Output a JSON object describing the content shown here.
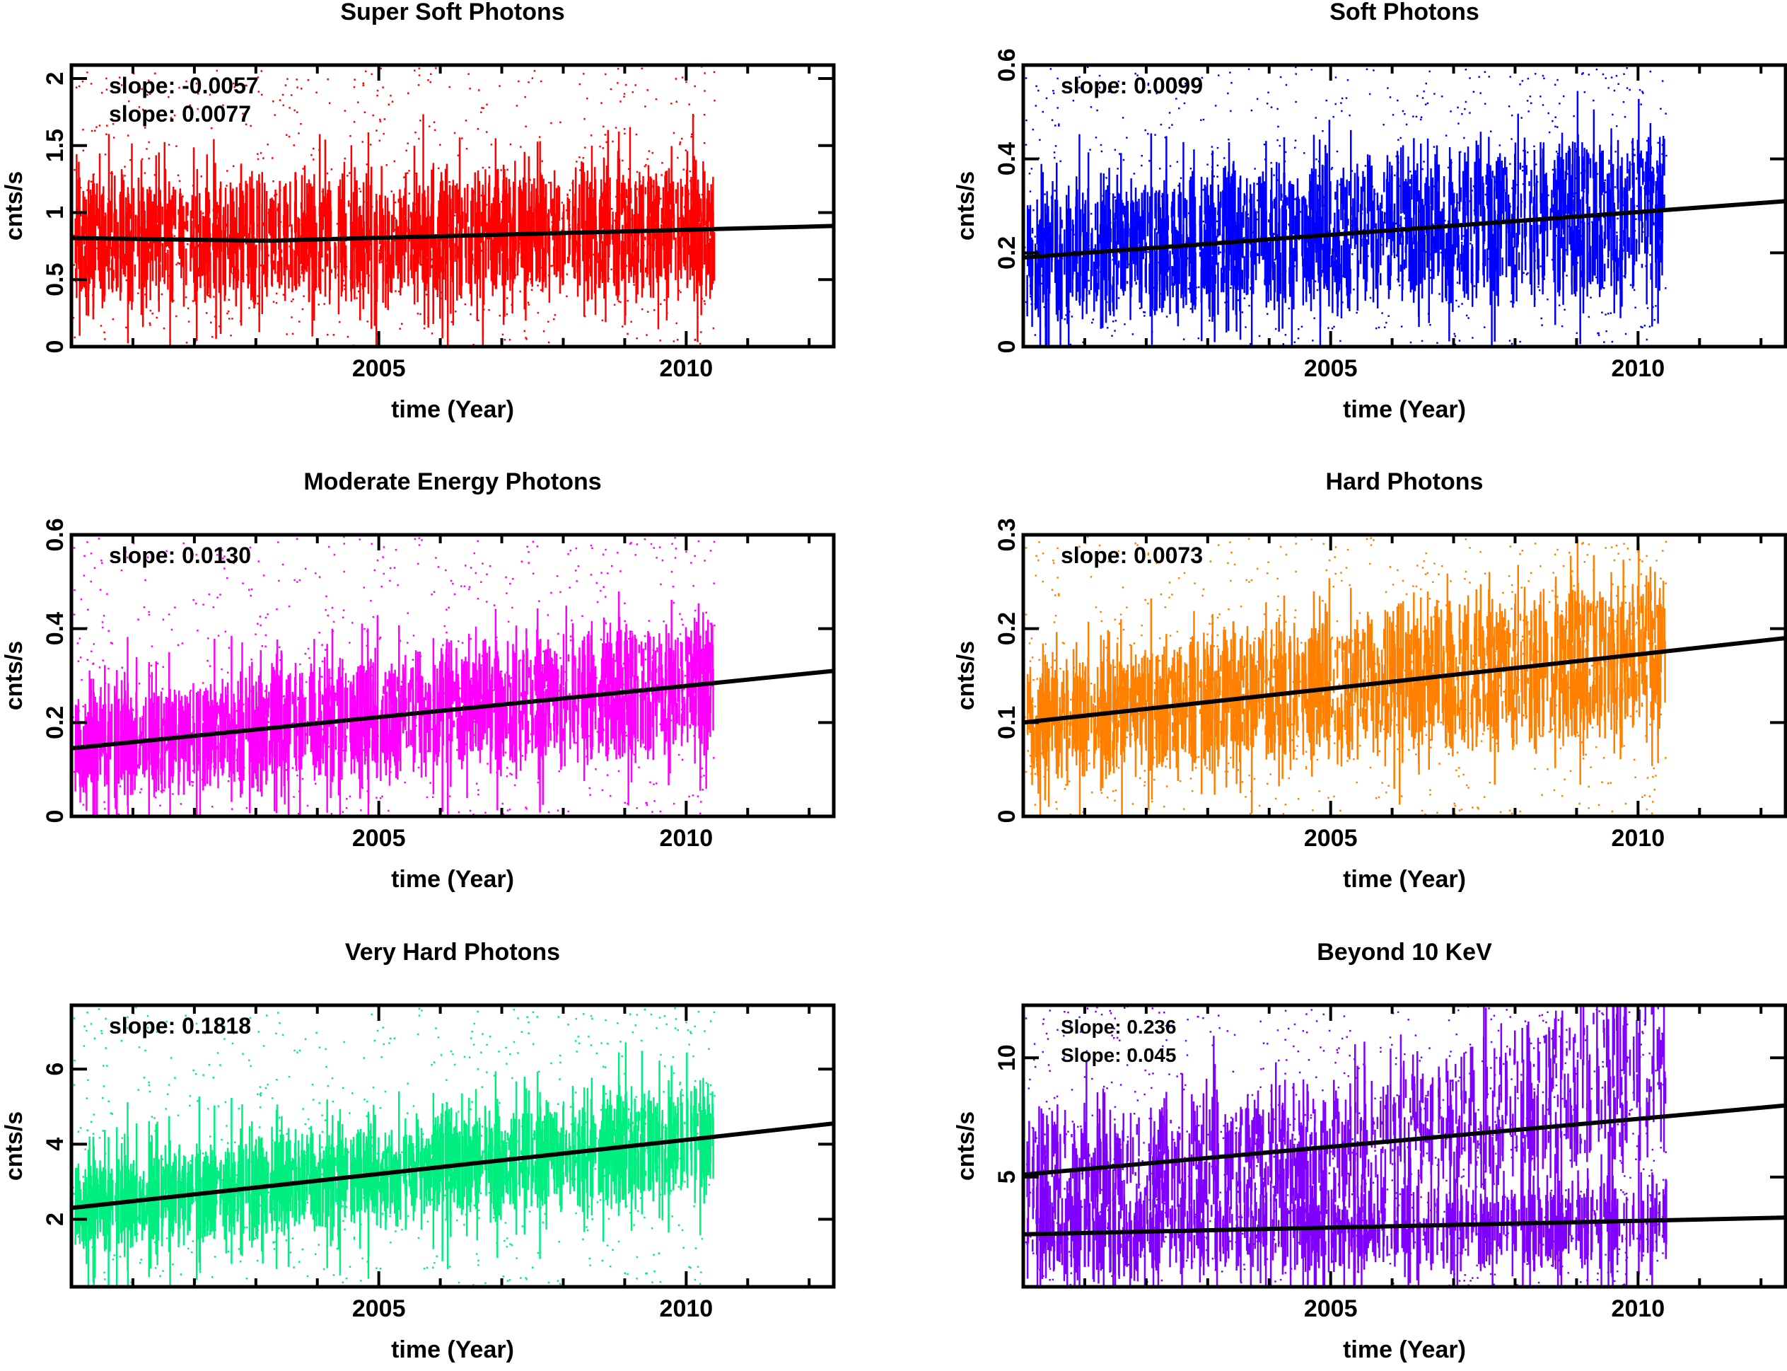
{
  "chart_data": [
    {
      "type": "scatter",
      "title": "Super Soft Photons",
      "xlabel": "time (Year)",
      "ylabel": "cnts/s",
      "xlim": [
        2000.0,
        2012.4
      ],
      "ylim": [
        0,
        2.1
      ],
      "xticks": [
        2005,
        2010
      ],
      "yticks": [
        0,
        0.5,
        1,
        1.5,
        2
      ],
      "ytick_labels": [
        "0",
        "0.5",
        "1",
        "1.5",
        "2"
      ],
      "color": "#ff0000",
      "annotations": [
        "slope: -0.0057",
        "slope: 0.0077"
      ],
      "fit_lines": [
        {
          "x": [
            2000.0,
            2003.2
          ],
          "y": [
            0.81,
            0.79
          ]
        },
        {
          "x": [
            2003.2,
            2012.4
          ],
          "y": [
            0.79,
            0.9
          ]
        }
      ],
      "data_end": 2010.45,
      "grid": false
    },
    {
      "type": "scatter",
      "title": "Soft Photons",
      "xlabel": "time (Year)",
      "ylabel": "cnts/s",
      "xlim": [
        2000.0,
        2012.4
      ],
      "ylim": [
        0,
        0.6
      ],
      "xticks": [
        2005,
        2010
      ],
      "yticks": [
        0,
        0.2,
        0.4,
        0.6
      ],
      "ytick_labels": [
        "0",
        "0.2",
        "0.4",
        "0.6"
      ],
      "color": "#0000ff",
      "annotations": [
        "slope: 0.0099"
      ],
      "fit_lines": [
        {
          "x": [
            2000.0,
            2012.4
          ],
          "y": [
            0.19,
            0.31
          ]
        }
      ],
      "data_end": 2010.45,
      "grid": false
    },
    {
      "type": "scatter",
      "title": "Moderate Energy Photons",
      "xlabel": "time (Year)",
      "ylabel": "cnts/s",
      "xlim": [
        2000.0,
        2012.4
      ],
      "ylim": [
        0,
        0.6
      ],
      "xticks": [
        2005,
        2010
      ],
      "yticks": [
        0,
        0.2,
        0.4,
        0.6
      ],
      "ytick_labels": [
        "0",
        "0.2",
        "0.4",
        "0.6"
      ],
      "color": "#ff00ff",
      "annotations": [
        "slope: 0.0130"
      ],
      "fit_lines": [
        {
          "x": [
            2000.0,
            2012.4
          ],
          "y": [
            0.145,
            0.31
          ]
        }
      ],
      "data_end": 2010.45,
      "grid": false
    },
    {
      "type": "scatter",
      "title": "Hard Photons",
      "xlabel": "time (Year)",
      "ylabel": "cnts/s",
      "xlim": [
        2000.0,
        2012.4
      ],
      "ylim": [
        0,
        0.3
      ],
      "xticks": [
        2005,
        2010
      ],
      "yticks": [
        0,
        0.1,
        0.2,
        0.3
      ],
      "ytick_labels": [
        "0",
        "0.1",
        "0.2",
        "0.3"
      ],
      "color": "#ff8000",
      "annotations": [
        "slope: 0.0073"
      ],
      "fit_lines": [
        {
          "x": [
            2000.0,
            2012.4
          ],
          "y": [
            0.1,
            0.19
          ]
        }
      ],
      "data_end": 2010.45,
      "grid": false
    },
    {
      "type": "scatter",
      "title": "Very Hard  Photons",
      "xlabel": "time (Year)",
      "ylabel": "cnts/s",
      "xlim": [
        2000.0,
        2012.4
      ],
      "ylim": [
        0.2,
        7.7
      ],
      "xticks": [
        2005,
        2010
      ],
      "yticks": [
        2,
        4,
        6
      ],
      "ytick_labels": [
        "2",
        "4",
        "6"
      ],
      "color": "#00ee80",
      "annotations": [
        "slope: 0.1818"
      ],
      "fit_lines": [
        {
          "x": [
            2000.0,
            2012.4
          ],
          "y": [
            2.3,
            4.55
          ]
        }
      ],
      "data_end": 2010.45,
      "grid": false
    },
    {
      "type": "scatter",
      "title": "Beyond 10 KeV",
      "xlabel": "time (Year)",
      "ylabel": "cnts/s",
      "xlim": [
        2000.0,
        2012.4
      ],
      "ylim": [
        0.4,
        12.2
      ],
      "xticks": [
        2005,
        2010
      ],
      "yticks": [
        5,
        10
      ],
      "ytick_labels": [
        "5",
        "10"
      ],
      "color": "#8000ff",
      "annotations": [
        "Slope: 0.236",
        "Slope: 0.045"
      ],
      "fit_lines": [
        {
          "x": [
            2000.0,
            2012.4
          ],
          "y": [
            5.1,
            8.0
          ]
        },
        {
          "x": [
            2000.0,
            2012.4
          ],
          "y": [
            2.6,
            3.3
          ]
        }
      ],
      "data_end": 2010.45,
      "grid": false
    }
  ]
}
